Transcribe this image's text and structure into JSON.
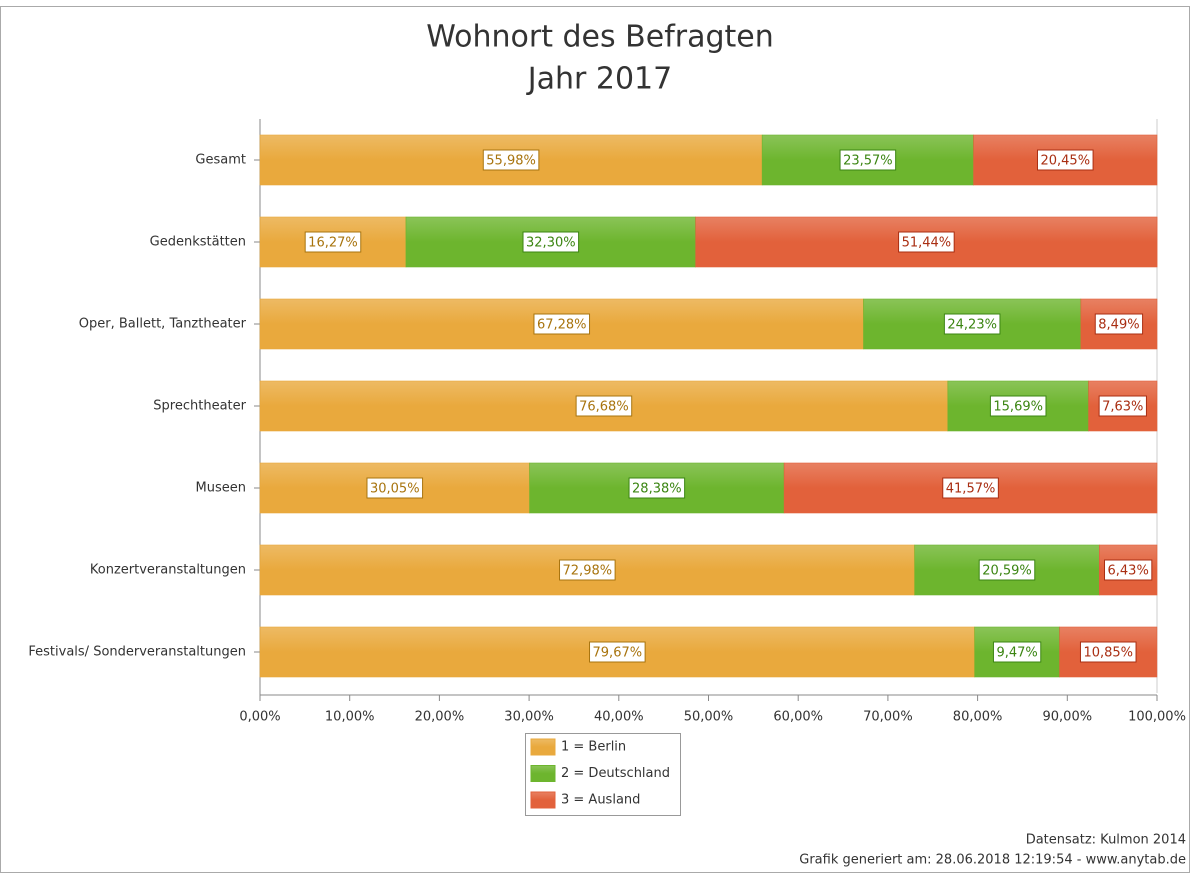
{
  "chart_data": {
    "type": "stacked_barh",
    "title": "Wohnort des Befragten",
    "subtitle": "Jahr 2017",
    "categories": [
      "Gesamt",
      "Gedenkstätten",
      "Oper, Ballett, Tanztheater",
      "Sprechtheater",
      "Museen",
      "Konzertveranstaltungen",
      "Festivals/ Sonderveranstaltungen"
    ],
    "series": [
      {
        "name": "1 = Berlin",
        "color": "#e9a93d",
        "label_color": "#a8740e",
        "values": [
          55.98,
          16.27,
          67.28,
          76.68,
          30.05,
          72.98,
          79.67
        ],
        "value_labels": [
          "55,98%",
          "16,27%",
          "67,28%",
          "76,68%",
          "30,05%",
          "72,98%",
          "79,67%"
        ]
      },
      {
        "name": "2 = Deutschland",
        "color": "#6db52e",
        "label_color": "#3b8512",
        "values": [
          23.57,
          32.3,
          24.23,
          15.69,
          28.38,
          20.59,
          9.47
        ],
        "value_labels": [
          "23,57%",
          "32,30%",
          "24,23%",
          "15,69%",
          "28,38%",
          "20,59%",
          "9,47%"
        ]
      },
      {
        "name": "3 = Ausland",
        "color": "#e2613b",
        "label_color": "#a92e12",
        "values": [
          20.45,
          51.44,
          8.49,
          7.63,
          41.57,
          6.43,
          10.85
        ],
        "value_labels": [
          "20,45%",
          "51,44%",
          "8,49%",
          "7,63%",
          "41,57%",
          "6,43%",
          "10,85%"
        ]
      }
    ],
    "xlim": [
      0,
      100
    ],
    "xticks": [
      {
        "value": 0,
        "label": "0,00%"
      },
      {
        "value": 10,
        "label": "10,00%"
      },
      {
        "value": 20,
        "label": "20,00%"
      },
      {
        "value": 30,
        "label": "30,00%"
      },
      {
        "value": 40,
        "label": "40,00%"
      },
      {
        "value": 50,
        "label": "50,00%"
      },
      {
        "value": 60,
        "label": "60,00%"
      },
      {
        "value": 70,
        "label": "70,00%"
      },
      {
        "value": 80,
        "label": "80,00%"
      },
      {
        "value": 90,
        "label": "90,00%"
      },
      {
        "value": 100,
        "label": "100,00%"
      }
    ],
    "legend": "bottom",
    "footer": [
      "Datensatz: Kulmon 2014",
      "Grafik generiert am: 28.06.2018 12:19:54 - www.anytab.de"
    ]
  }
}
